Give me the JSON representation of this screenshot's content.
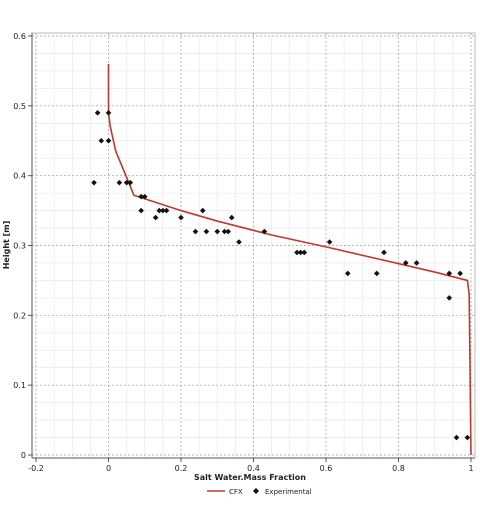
{
  "chart_data": {
    "type": "line",
    "xlabel": "Salt Water.Mass Fraction",
    "ylabel": "Height [m]",
    "xlim": [
      -0.2,
      1.0
    ],
    "ylim": [
      0,
      0.6
    ],
    "xticks": [
      -0.2,
      0,
      0.2,
      0.4,
      0.6,
      0.8,
      1
    ],
    "xtick_labels": [
      "-0.2",
      "0",
      "0.2",
      "0.4",
      "0.6",
      "0.8",
      "1"
    ],
    "yticks": [
      0,
      0.1,
      0.2,
      0.3,
      0.4,
      0.5,
      0.6
    ],
    "ytick_labels": [
      "0",
      "0.1",
      "0.2",
      "0.3",
      "0.4",
      "0.5",
      "0.6"
    ],
    "grid": true,
    "legend_position": "bottom-center",
    "series": [
      {
        "name": "CFX",
        "kind": "line",
        "color": "#c0392b",
        "x": [
          0.0,
          0.0,
          0.005,
          0.02,
          0.06,
          0.07,
          0.2,
          0.3,
          0.45,
          0.6,
          0.75,
          0.9,
          0.99,
          0.995,
          1.0
        ],
        "y": [
          0.56,
          0.49,
          0.47,
          0.435,
          0.385,
          0.372,
          0.35,
          0.335,
          0.315,
          0.298,
          0.28,
          0.262,
          0.25,
          0.23,
          0.0
        ]
      },
      {
        "name": "Experimental",
        "kind": "scatter",
        "color": "#111111",
        "marker": "diamond",
        "x": [
          -0.04,
          -0.03,
          -0.02,
          0.0,
          0.0,
          0.03,
          0.05,
          0.06,
          0.09,
          0.09,
          0.1,
          0.13,
          0.14,
          0.15,
          0.16,
          0.2,
          0.24,
          0.26,
          0.27,
          0.3,
          0.32,
          0.33,
          0.34,
          0.36,
          0.43,
          0.52,
          0.53,
          0.54,
          0.61,
          0.66,
          0.74,
          0.76,
          0.82,
          0.85,
          0.94,
          0.94,
          0.96,
          0.97,
          0.99
        ],
        "y": [
          0.39,
          0.49,
          0.45,
          0.45,
          0.49,
          0.39,
          0.39,
          0.39,
          0.37,
          0.35,
          0.37,
          0.34,
          0.35,
          0.35,
          0.35,
          0.34,
          0.32,
          0.35,
          0.32,
          0.32,
          0.32,
          0.32,
          0.34,
          0.305,
          0.32,
          0.29,
          0.29,
          0.29,
          0.305,
          0.26,
          0.26,
          0.29,
          0.275,
          0.275,
          0.225,
          0.26,
          0.025,
          0.26,
          0.025
        ]
      }
    ]
  }
}
